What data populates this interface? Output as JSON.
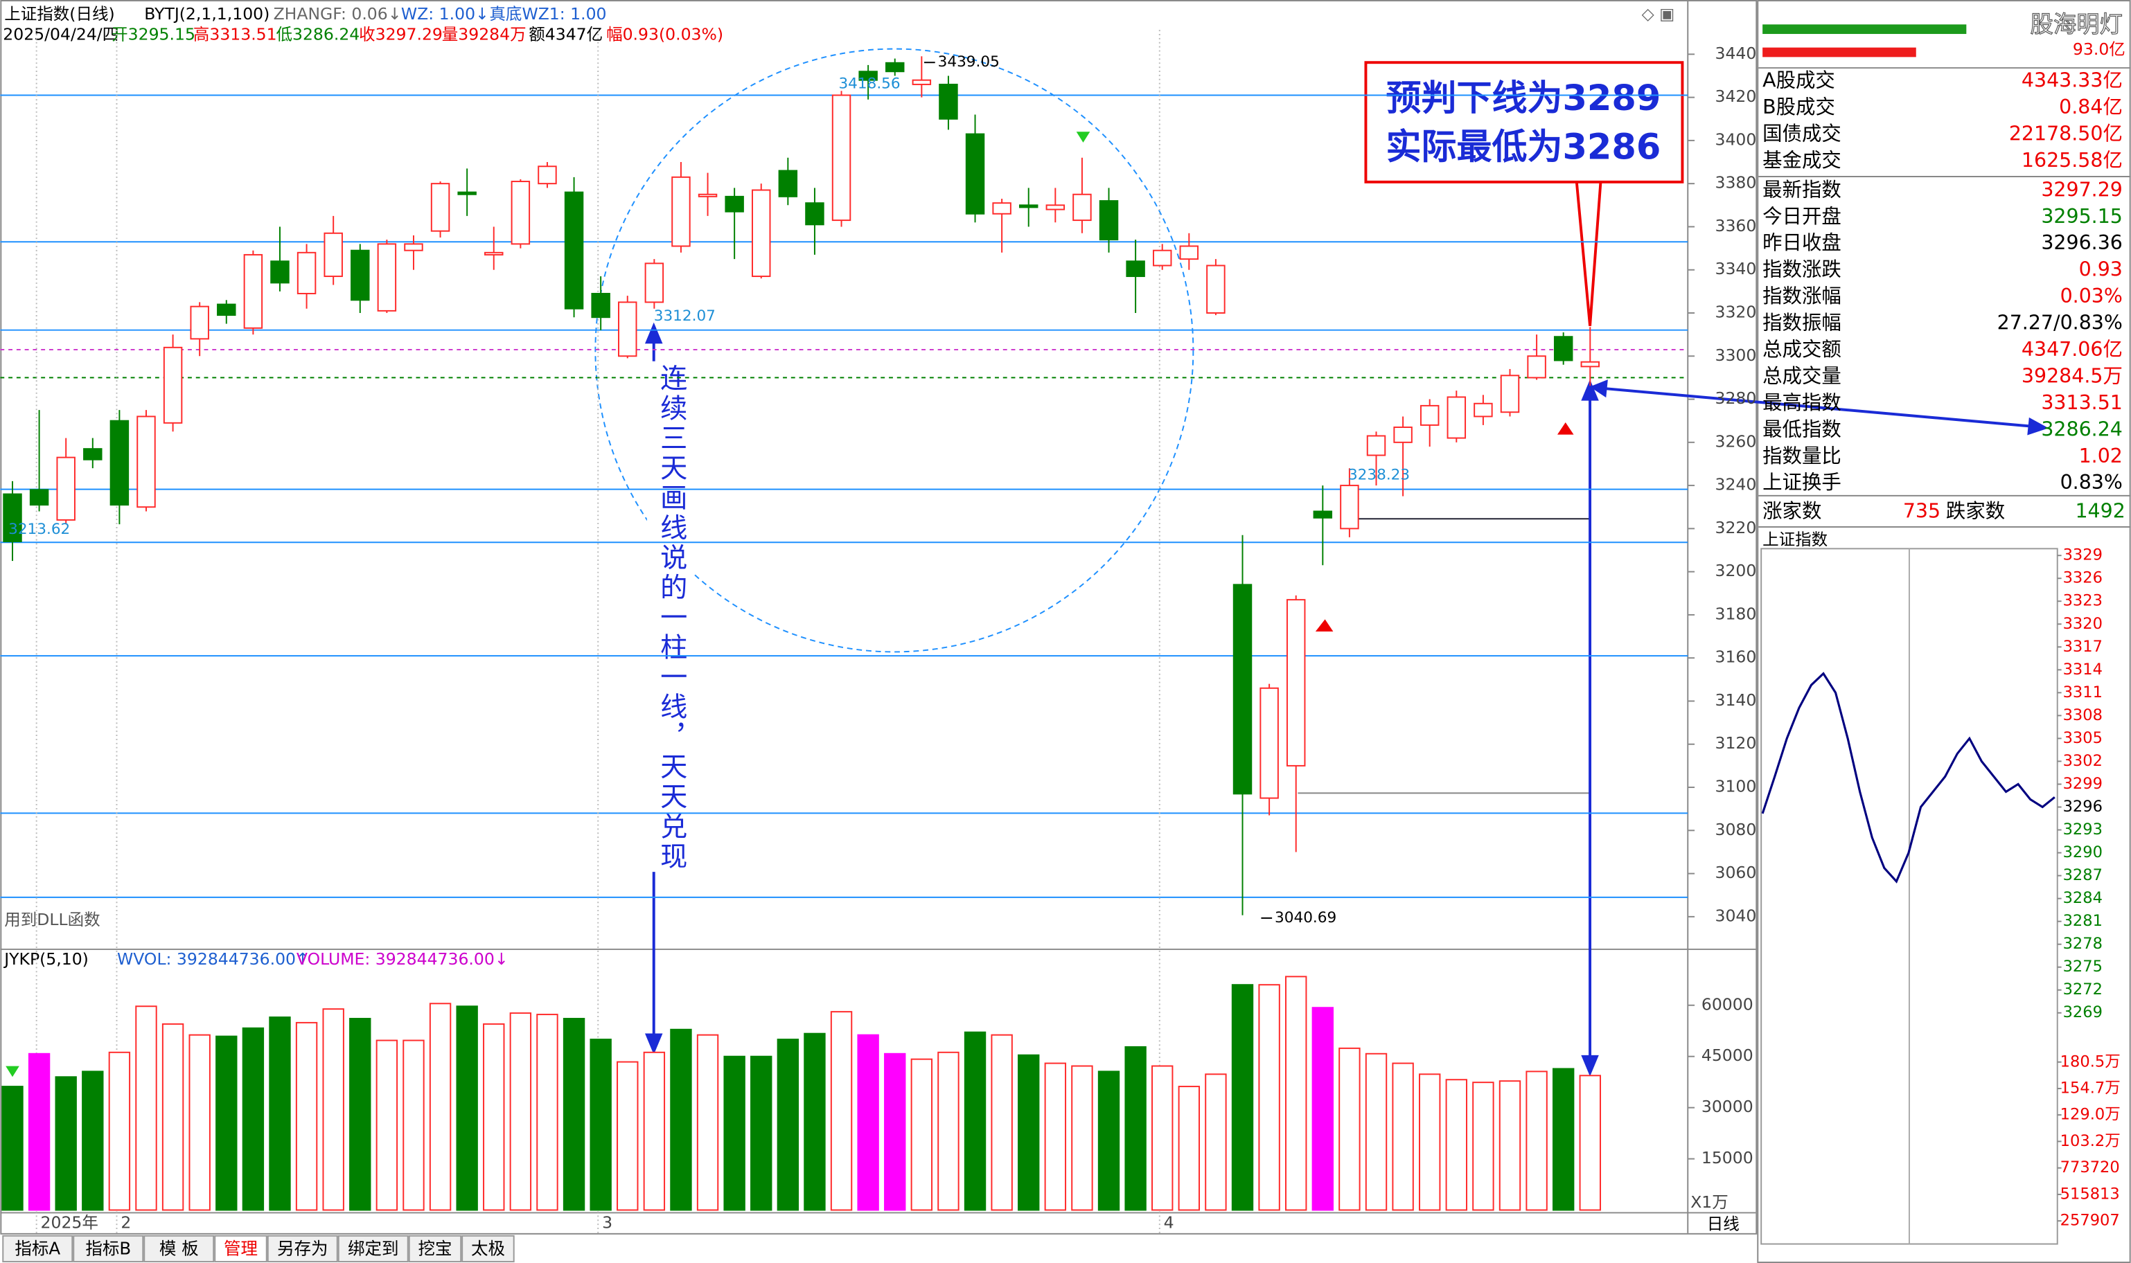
{
  "chart_data": [
    {
      "type": "candlestick",
      "title": "上证指数(日线)",
      "categories": [
        null,
        "2025年",
        null,
        null,
        "2",
        null,
        null,
        null,
        null,
        null,
        null,
        null,
        null,
        null,
        null,
        null,
        null,
        null,
        null,
        null,
        null,
        null,
        "3",
        null,
        null,
        null,
        null,
        null,
        null,
        null,
        null,
        null,
        null,
        null,
        null,
        null,
        null,
        null,
        null,
        null,
        null,
        null,
        null,
        "4",
        null,
        null,
        null,
        null,
        null,
        null,
        null,
        null,
        null,
        null,
        null,
        null,
        null,
        null,
        null,
        null
      ],
      "open": [
        3236,
        3238,
        3224,
        3257,
        3270,
        3230,
        3269,
        3308,
        3324,
        3313,
        3344,
        3329,
        3337,
        3349,
        3321,
        3349,
        3358,
        3376,
        3347,
        3352,
        3380,
        3376,
        3329,
        3300,
        3325,
        3351,
        3374,
        3374,
        3337,
        3386,
        3371,
        3363,
        3432,
        3436,
        3426,
        3426,
        3403,
        3366,
        3370,
        3368,
        3363,
        3372,
        3344,
        3342,
        3345,
        3320,
        3194,
        3095,
        3110,
        3228,
        3220,
        3254,
        3260,
        3268,
        3262,
        3272,
        3274,
        3290,
        3309,
        3295.15
      ],
      "high": [
        3242,
        3275,
        3262,
        3262,
        3275,
        3275,
        3310,
        3325,
        3326,
        3349,
        3360,
        3352,
        3365,
        3352,
        3354,
        3356,
        3381,
        3387,
        3360,
        3382,
        3390,
        3383,
        3337,
        3328,
        3345,
        3390,
        3385,
        3378,
        3380,
        3392,
        3378,
        3423,
        3435,
        3438,
        3439.05,
        3430,
        3412,
        3373,
        3378,
        3378,
        3392,
        3378,
        3354,
        3352,
        3357,
        3345,
        3217,
        3148,
        3189,
        3240,
        3248,
        3265,
        3272,
        3280,
        3284,
        3282,
        3294,
        3310,
        3311,
        3313.51
      ],
      "low": [
        3205,
        3228,
        3222,
        3248,
        3222,
        3228,
        3265,
        3300,
        3315,
        3310,
        3330,
        3322,
        3333,
        3320,
        3320,
        3340,
        3355,
        3365,
        3340,
        3350,
        3378,
        3318,
        3312,
        3299,
        3322,
        3348,
        3365,
        3345,
        3336,
        3370,
        3347,
        3360,
        3419,
        3430,
        3420,
        3405,
        3362,
        3348,
        3360,
        3362,
        3357,
        3348,
        3320,
        3340,
        3340,
        3319,
        3040.69,
        3087,
        3070,
        3203,
        3216,
        3240,
        3235,
        3258,
        3260,
        3268,
        3272,
        3289,
        3296,
        3286.24
      ],
      "close": [
        3214,
        3231,
        3253,
        3252,
        3231,
        3272,
        3304,
        3323,
        3319,
        3347,
        3334,
        3348,
        3357,
        3326,
        3352,
        3352,
        3380,
        3375,
        3348,
        3381,
        3388,
        3322,
        3318,
        3325,
        3343,
        3383,
        3375,
        3367,
        3377,
        3374,
        3361,
        3421,
        3428,
        3432,
        3428,
        3410,
        3366,
        3371,
        3369,
        3370,
        3375,
        3354,
        3337,
        3349,
        3351,
        3342,
        3097,
        3146,
        3187,
        3225,
        3240,
        3263,
        3267,
        3277,
        3281,
        3278,
        3291,
        3300,
        3298,
        3297.29
      ],
      "up_color": "#ff2a2a",
      "down_color": "#008000",
      "ylim": [
        3027.4,
        3451.3
      ],
      "yticks": [
        3040,
        3060,
        3080,
        3100,
        3120,
        3140,
        3160,
        3180,
        3200,
        3220,
        3240,
        3260,
        3280,
        3300,
        3320,
        3340,
        3360,
        3380,
        3400,
        3420,
        3440
      ],
      "levels": [
        3421,
        3353,
        3312.07,
        3238.23,
        3213.62,
        3161,
        3088,
        3049
      ],
      "level_color": "#1e90ff",
      "dashed_levels": [
        {
          "value": 3303,
          "color": "#cc33cc"
        },
        {
          "value": 3290,
          "color": "#008000"
        }
      ],
      "annotations": [
        3439.05,
        3418.56,
        3312.07,
        3238.23,
        3213.62,
        3040.69
      ]
    },
    {
      "type": "bar",
      "title": "JYKP(5,10)",
      "values": [
        36200,
        45800,
        39000,
        40600,
        46200,
        59700,
        54500,
        51300,
        50900,
        53300,
        56500,
        54900,
        58900,
        56100,
        49700,
        49700,
        60500,
        59700,
        54500,
        57700,
        57300,
        56100,
        50000,
        43400,
        46200,
        52900,
        51300,
        45000,
        45000,
        50000,
        51700,
        58100,
        51300,
        45800,
        44200,
        46200,
        52100,
        51300,
        45400,
        43000,
        42200,
        40600,
        47800,
        42200,
        36200,
        39800,
        66000,
        66000,
        68400,
        59300,
        47400,
        45800,
        43000,
        39800,
        38200,
        37400,
        37800,
        40600,
        41400,
        39400
      ],
      "colors": [
        "#008000",
        "#ff00ff",
        "#008000",
        "#008000",
        "#ff2a2a",
        "#ff2a2a",
        "#ff2a2a",
        "#ff2a2a",
        "#008000",
        "#008000",
        "#008000",
        "#ff2a2a",
        "#ff2a2a",
        "#008000",
        "#ff2a2a",
        "#ff2a2a",
        "#ff2a2a",
        "#008000",
        "#ff2a2a",
        "#ff2a2a",
        "#ff2a2a",
        "#008000",
        "#008000",
        "#ff2a2a",
        "#ff2a2a",
        "#008000",
        "#ff2a2a",
        "#008000",
        "#008000",
        "#008000",
        "#008000",
        "#ff2a2a",
        "#ff00ff",
        "#ff00ff",
        "#ff2a2a",
        "#ff2a2a",
        "#008000",
        "#ff2a2a",
        "#008000",
        "#ff2a2a",
        "#ff2a2a",
        "#008000",
        "#008000",
        "#ff2a2a",
        "#ff2a2a",
        "#ff2a2a",
        "#008000",
        "#ff2a2a",
        "#ff2a2a",
        "#ff00ff",
        "#ff2a2a",
        "#ff2a2a",
        "#ff2a2a",
        "#ff2a2a",
        "#ff2a2a",
        "#ff2a2a",
        "#ff2a2a",
        "#ff2a2a",
        "#008000",
        "#ff2a2a"
      ],
      "ylim": [
        0,
        76000
      ],
      "yticks": [
        15000,
        30000,
        45000,
        60000
      ],
      "unit": "X1万",
      "indicators": [
        "WVOL: 392844736.00↑",
        "VOLUME: 392844736.00↓"
      ]
    },
    {
      "type": "line",
      "title": "上证指数",
      "x": [
        0,
        10,
        20,
        30,
        40,
        50,
        60,
        70,
        80,
        90,
        100,
        110,
        120,
        130,
        140,
        150,
        160,
        170,
        180,
        190,
        200,
        210,
        220,
        230,
        240
      ],
      "series": [
        {
          "name": "上证指数",
          "color": "#000080",
          "values": [
            3295.15,
            3300,
            3305,
            3309,
            3312,
            3313.51,
            3311,
            3305,
            3298,
            3292,
            3288,
            3286.24,
            3290,
            3296,
            3298,
            3300,
            3303,
            3305,
            3302,
            3300,
            3298,
            3299,
            3297,
            3296,
            3297.29
          ]
        }
      ],
      "xlim": [
        0,
        240
      ],
      "ylim": [
        3263.8,
        3330.25
      ],
      "yticks": [
        3269,
        3272,
        3275,
        3278,
        3281,
        3284,
        3287,
        3290,
        3293,
        3296,
        3299,
        3302,
        3305,
        3308,
        3311,
        3314,
        3317,
        3320,
        3323,
        3326,
        3329
      ],
      "volume_ylim": [
        0,
        1897900
      ],
      "volume_ticks": [
        257907,
        515813,
        773720,
        {
          "value": 1032000,
          "label": "103.2万"
        },
        {
          "value": 1290000,
          "label": "129.0万"
        },
        {
          "value": 1547000,
          "label": "154.7万"
        },
        {
          "value": 1805000,
          "label": "180.5万"
        }
      ]
    }
  ],
  "header": {
    "line1": [
      "上证指数(日线)",
      "BYTJ(2,1,1,100)",
      "ZHANGF: 0.06↓",
      "WZ: 1.00↓",
      "真底WZ1: 1.00"
    ],
    "line2": [
      "2025/04/24/四",
      "开3295.15",
      "高3313.51",
      "低3286.24",
      "收3297.29",
      "量39284万",
      "额4347亿",
      "幅0.93(0.03%)"
    ]
  },
  "note_box": [
    "预判下线为3289",
    "实际最低为3286"
  ],
  "vertical_note": "连续三天画线说的一柱一线，天天兑现",
  "dll_note": "用到DLL函数",
  "side_panel": {
    "brand": "股海明灯",
    "amount": "93.0亿",
    "rows": [
      [
        "A股成交",
        "4343.33亿"
      ],
      [
        "B股成交",
        "0.84亿"
      ],
      [
        "国债成交",
        "22178.50亿"
      ],
      [
        "基金成交",
        "1625.58亿"
      ],
      [
        "最新指数",
        "3297.29"
      ],
      [
        "今日开盘",
        "3295.15"
      ],
      [
        "昨日收盘",
        "3296.36"
      ],
      [
        "指数涨跌",
        "0.93"
      ],
      [
        "指数涨幅",
        "0.03%"
      ],
      [
        "指数振幅",
        "27.27/0.83%"
      ],
      [
        "总成交额",
        "4347.06亿"
      ],
      [
        "总成交量",
        "39284.5万"
      ],
      [
        "最高指数",
        "3313.51"
      ],
      [
        "最低指数",
        "3286.24"
      ],
      [
        "指数量比",
        "1.02"
      ],
      [
        "上证换手",
        "0.83%"
      ]
    ],
    "breadth": [
      "涨家数",
      "735",
      "跌家数",
      "1492"
    ]
  },
  "tabs": [
    "指标A",
    "指标B",
    "模 板",
    "管理",
    "另存为",
    "绑定到",
    "挖宝",
    "太极"
  ],
  "period": "日线"
}
